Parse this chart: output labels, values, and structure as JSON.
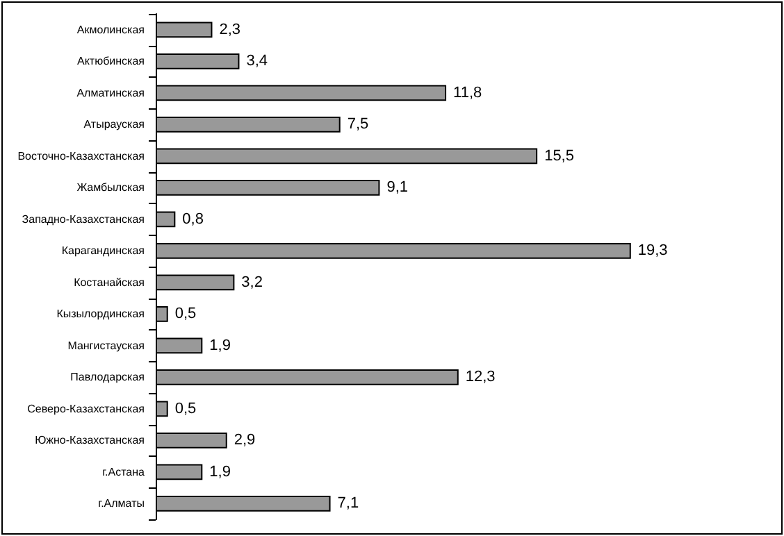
{
  "chart_data": {
    "type": "bar",
    "orientation": "horizontal",
    "categories": [
      "Акмолинская",
      "Актюбинская",
      "Алматинская",
      "Атырауская",
      "Восточно-Казахстанская",
      "Жамбылская",
      "Западно-Казахстанская",
      "Карагандинская",
      "Костанайская",
      "Кызылординская",
      "Мангистауская",
      "Павлодарская",
      "Северо-Казахстанская",
      "Южно-Казахстанская",
      "г.Астана",
      "г.Алматы"
    ],
    "values": [
      2.3,
      3.4,
      11.8,
      7.5,
      15.5,
      9.1,
      0.8,
      19.3,
      3.2,
      0.5,
      1.9,
      12.3,
      0.5,
      2.9,
      1.9,
      7.1
    ],
    "value_labels": [
      "2,3",
      "3,4",
      "11,8",
      "7,5",
      "15,5",
      "9,1",
      "0,8",
      "19,3",
      "3,2",
      "0,5",
      "1,9",
      "12,3",
      "0,5",
      "2,9",
      "1,9",
      "7,1"
    ],
    "color": "#999999"
  }
}
